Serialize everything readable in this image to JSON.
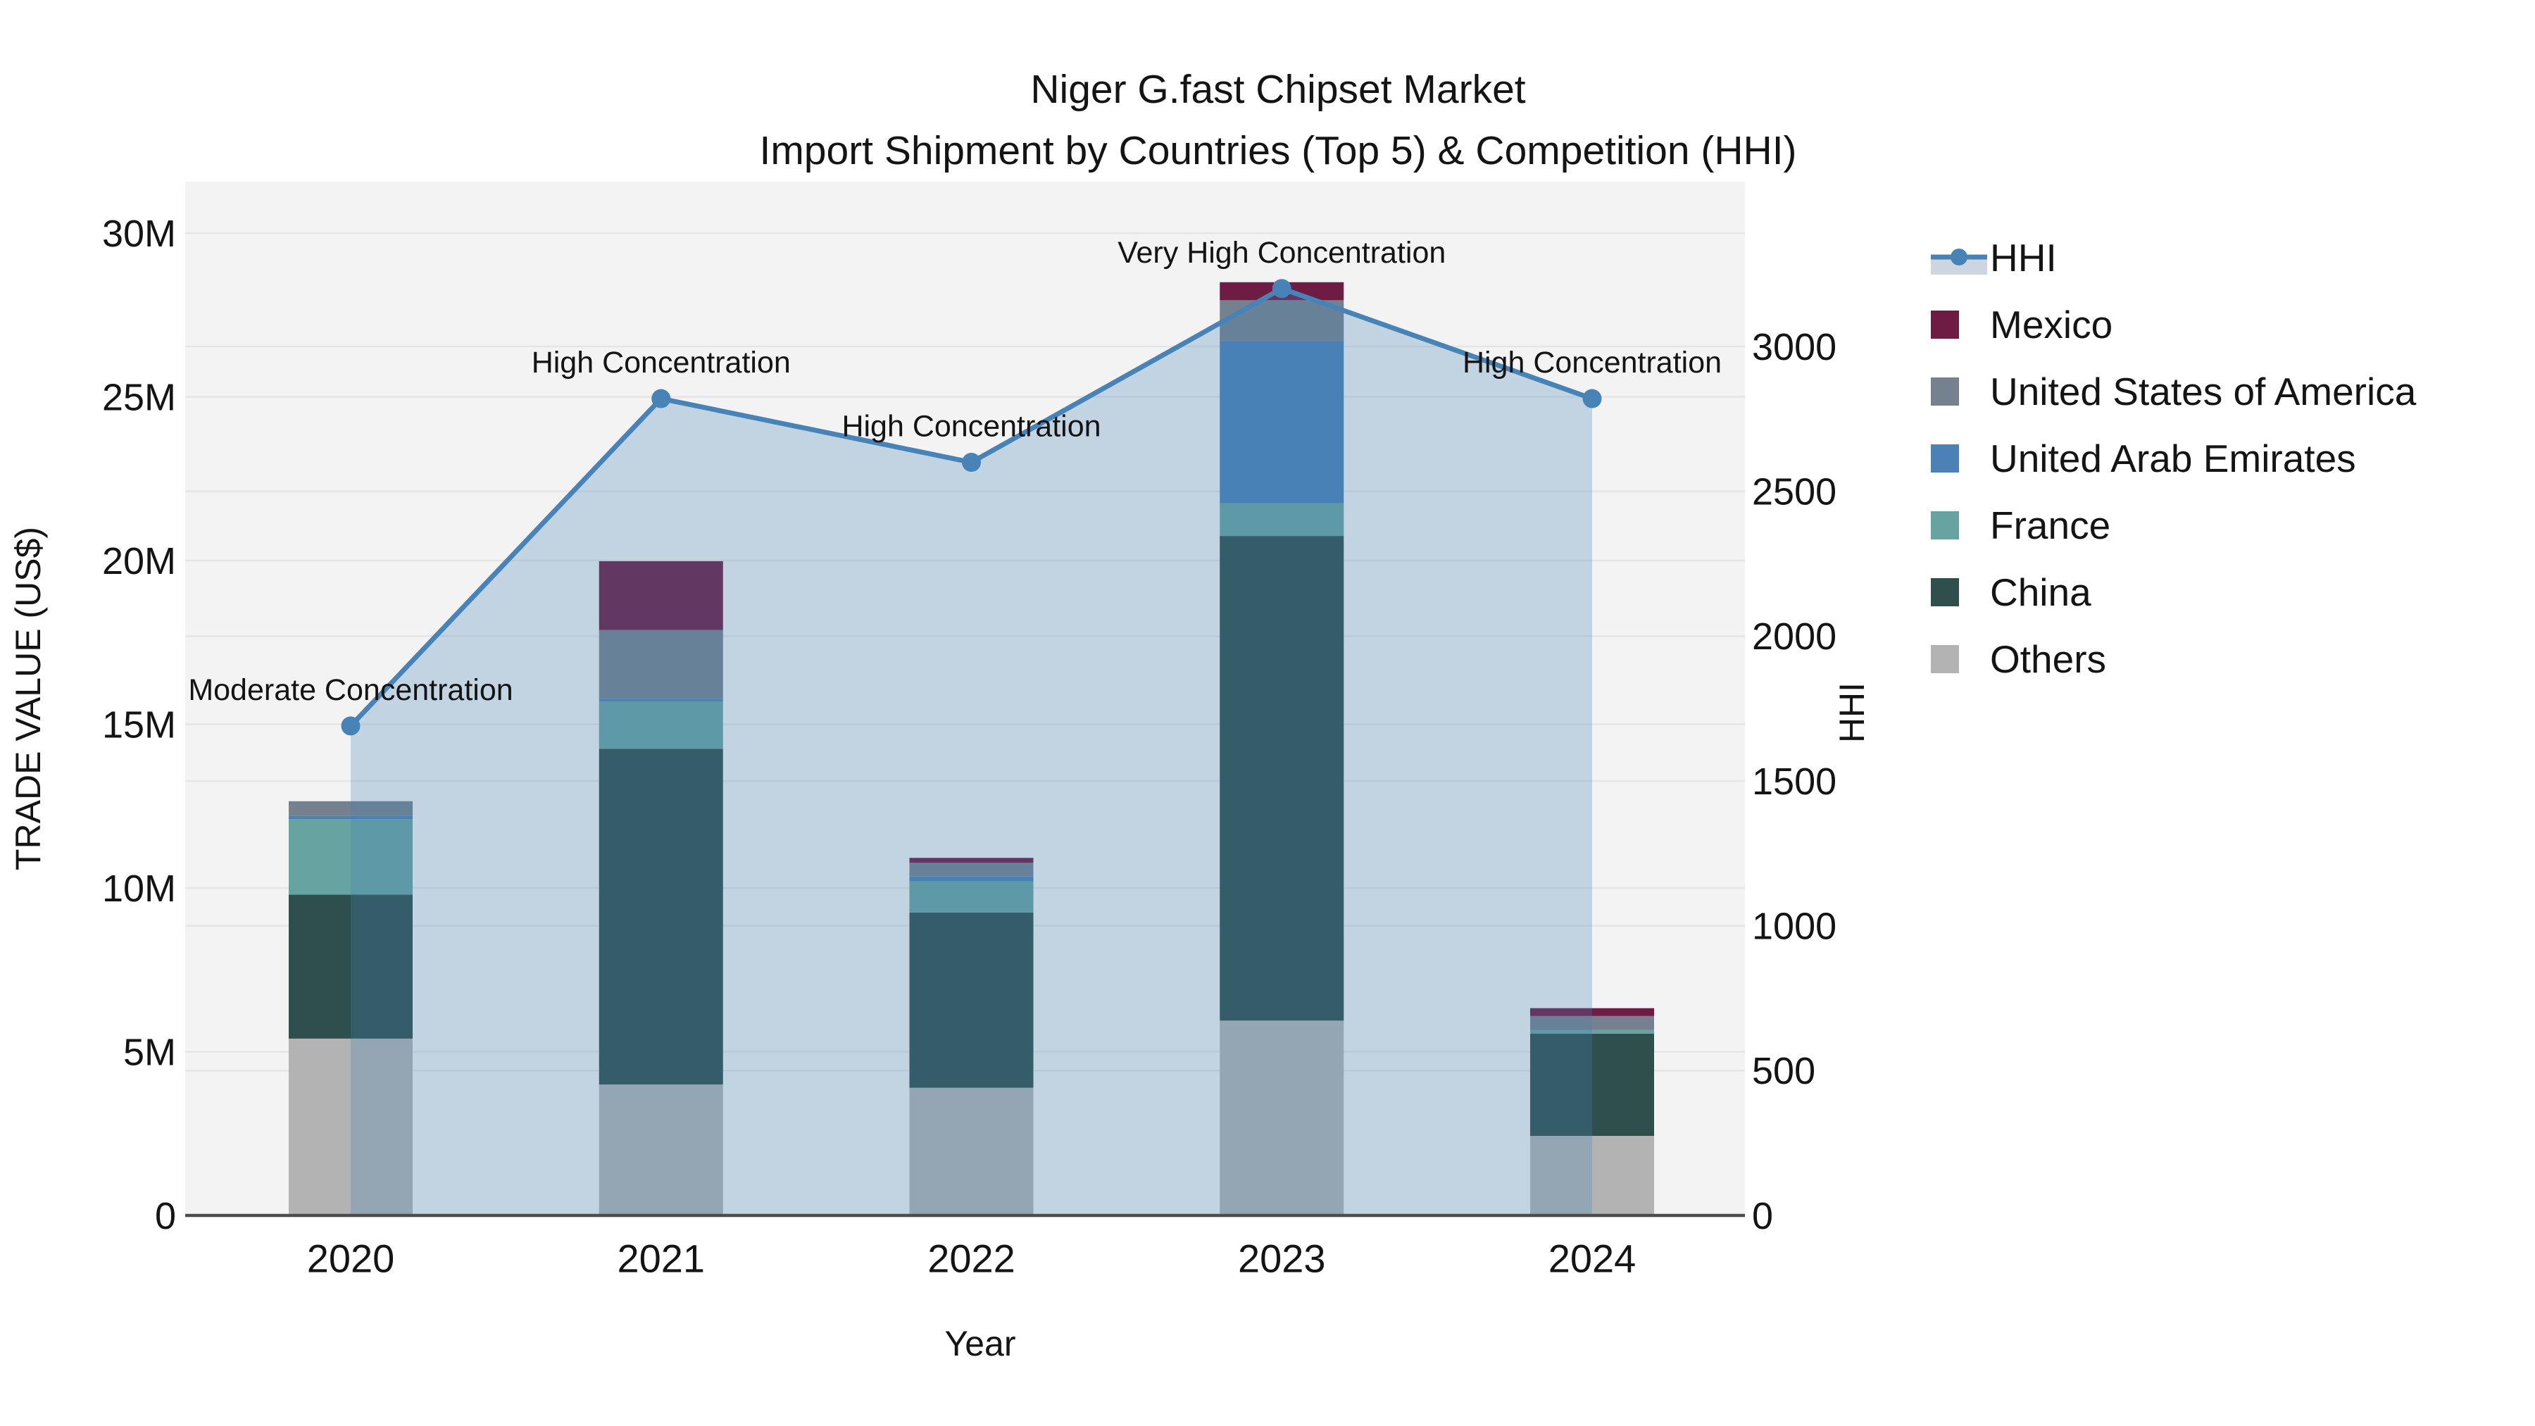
{
  "title": {
    "line1": "Niger G.fast Chipset Market",
    "line2": "Import Shipment by Countries (Top 5) & Competition (HHI)"
  },
  "axes": {
    "x": {
      "label": "Year",
      "categories": [
        "2020",
        "2021",
        "2022",
        "2023",
        "2024"
      ]
    },
    "y_left": {
      "label": "TRADE VALUE (US$)",
      "tick_labels": [
        "0",
        "5M",
        "10M",
        "15M",
        "20M",
        "25M",
        "30M"
      ],
      "tick_values_millions": [
        0,
        5,
        10,
        15,
        20,
        25,
        30
      ],
      "max_millions": 30
    },
    "y_right": {
      "label": "HHI",
      "tick_labels": [
        "0",
        "500",
        "1000",
        "1500",
        "2000",
        "2500",
        "3000"
      ],
      "tick_values": [
        0,
        500,
        1000,
        1500,
        2000,
        2500,
        3000
      ],
      "max": 3000
    }
  },
  "colors": {
    "plot_bg": "#f3f3f4",
    "gridline": "#e5e5e8",
    "axis_line": "#4d4d4d",
    "text": "#141414",
    "hhi_line": "#4783b7",
    "hhi_area_fill": "rgba(70,130,180,0.28)",
    "hhi_legend_band": "#cdd5e0"
  },
  "chart_data": {
    "type": "combo-stacked-bar-and-line",
    "categories": [
      "2020",
      "2021",
      "2022",
      "2023",
      "2024"
    ],
    "bar_units": "millions US$",
    "series": [
      {
        "name": "Mexico",
        "color": "#6e1c44",
        "values": [
          0,
          2.1,
          0.15,
          0.55,
          0.24
        ]
      },
      {
        "name": "United States of America",
        "color": "#75818f",
        "values": [
          0.45,
          2.1,
          0.42,
          1.25,
          0.43
        ]
      },
      {
        "name": "United Arab Emirates",
        "color": "#4a82b8",
        "values": [
          0.1,
          0.08,
          0.15,
          4.95,
          0
        ]
      },
      {
        "name": "France",
        "color": "#67a3a1",
        "values": [
          2.3,
          1.45,
          0.95,
          1.0,
          0.11
        ]
      },
      {
        "name": "China",
        "color": "#2f4f4d",
        "values": [
          4.4,
          10.25,
          5.35,
          14.8,
          3.12
        ]
      },
      {
        "name": "Others",
        "color": "#b3b3b3",
        "values": [
          5.4,
          4.0,
          3.9,
          5.95,
          2.43
        ]
      }
    ],
    "stack_order_bottom_to_top": [
      "Others",
      "China",
      "France",
      "United Arab Emirates",
      "United States of America",
      "Mexico"
    ],
    "bar_totals_millions": [
      12.65,
      19.98,
      10.92,
      28.5,
      6.33
    ],
    "hhi": {
      "name": "HHI",
      "values": [
        1690,
        2820,
        2600,
        3200,
        2820
      ]
    },
    "annotations": [
      "Moderate Concentration",
      "High Concentration",
      "High Concentration",
      "Very High Concentration",
      "High Concentration"
    ],
    "legend_position": "right",
    "grid": "horizontal, both axes ticks"
  }
}
